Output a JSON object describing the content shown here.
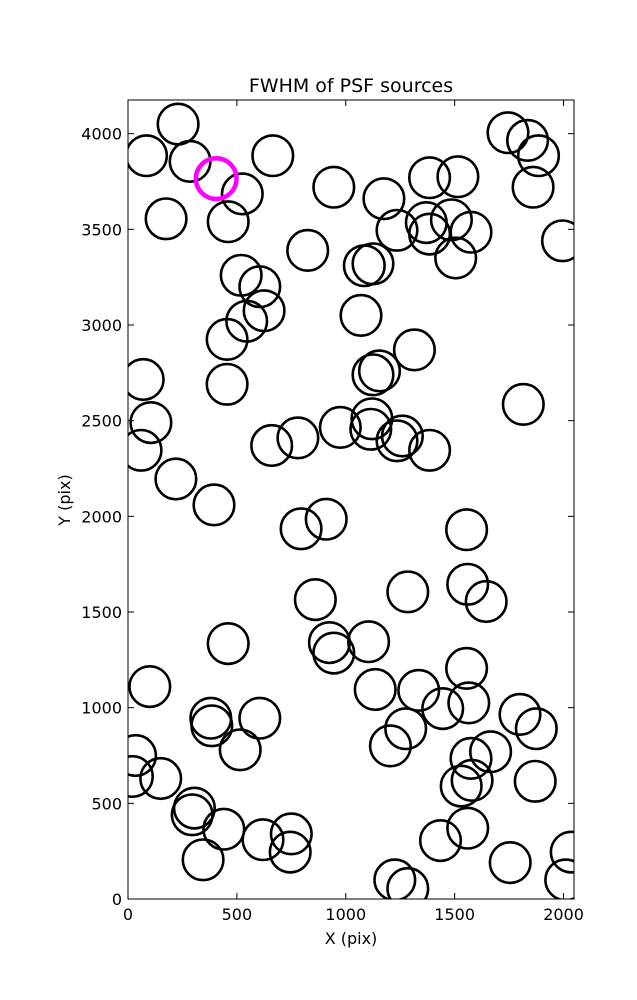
{
  "chart_data": {
    "type": "scatter",
    "title": "FWHM of PSF sources",
    "xlabel": "X (pix)",
    "ylabel": "Y (pix)",
    "xlim": [
      0,
      2048
    ],
    "ylim": [
      0,
      4176
    ],
    "xticks": [
      0,
      500,
      1000,
      1500,
      2000
    ],
    "yticks": [
      0,
      500,
      1000,
      1500,
      2000,
      2500,
      3000,
      3500,
      4000
    ],
    "grid": false,
    "marker": "open-circle",
    "marker_radius": 93,
    "colors": {
      "default": "#000000",
      "highlight": "#ff00ff"
    },
    "highlight": {
      "x": 405,
      "y": 3765
    },
    "sources": [
      {
        "x": 230,
        "y": 4050
      },
      {
        "x": 85,
        "y": 3885
      },
      {
        "x": 285,
        "y": 3855
      },
      {
        "x": 665,
        "y": 3885
      },
      {
        "x": 525,
        "y": 3685
      },
      {
        "x": 460,
        "y": 3540
      },
      {
        "x": 175,
        "y": 3555
      },
      {
        "x": 945,
        "y": 3720
      },
      {
        "x": 1175,
        "y": 3660
      },
      {
        "x": 1385,
        "y": 3770
      },
      {
        "x": 1515,
        "y": 3775
      },
      {
        "x": 1745,
        "y": 4005
      },
      {
        "x": 1835,
        "y": 3965
      },
      {
        "x": 1885,
        "y": 3885
      },
      {
        "x": 1860,
        "y": 3720
      },
      {
        "x": 1995,
        "y": 3440
      },
      {
        "x": 1235,
        "y": 3495
      },
      {
        "x": 1370,
        "y": 3535
      },
      {
        "x": 1385,
        "y": 3475
      },
      {
        "x": 1485,
        "y": 3550
      },
      {
        "x": 1575,
        "y": 3485
      },
      {
        "x": 1505,
        "y": 3350
      },
      {
        "x": 825,
        "y": 3390
      },
      {
        "x": 1085,
        "y": 3310
      },
      {
        "x": 1125,
        "y": 3320
      },
      {
        "x": 520,
        "y": 3260
      },
      {
        "x": 605,
        "y": 3200
      },
      {
        "x": 625,
        "y": 3075
      },
      {
        "x": 545,
        "y": 3020
      },
      {
        "x": 455,
        "y": 2925
      },
      {
        "x": 1070,
        "y": 3050
      },
      {
        "x": 1315,
        "y": 2870
      },
      {
        "x": 1125,
        "y": 2740
      },
      {
        "x": 1155,
        "y": 2760
      },
      {
        "x": 70,
        "y": 2715
      },
      {
        "x": 455,
        "y": 2690
      },
      {
        "x": 1815,
        "y": 2585
      },
      {
        "x": 105,
        "y": 2490
      },
      {
        "x": 60,
        "y": 2345
      },
      {
        "x": 220,
        "y": 2195
      },
      {
        "x": 395,
        "y": 2060
      },
      {
        "x": 660,
        "y": 2370
      },
      {
        "x": 780,
        "y": 2410
      },
      {
        "x": 975,
        "y": 2465
      },
      {
        "x": 1115,
        "y": 2455
      },
      {
        "x": 1120,
        "y": 2510
      },
      {
        "x": 1235,
        "y": 2395
      },
      {
        "x": 1260,
        "y": 2420
      },
      {
        "x": 1385,
        "y": 2345
      },
      {
        "x": 795,
        "y": 1935
      },
      {
        "x": 910,
        "y": 1985
      },
      {
        "x": 1555,
        "y": 1930
      },
      {
        "x": 860,
        "y": 1565
      },
      {
        "x": 1285,
        "y": 1605
      },
      {
        "x": 1560,
        "y": 1645
      },
      {
        "x": 1645,
        "y": 1555
      },
      {
        "x": 460,
        "y": 1335
      },
      {
        "x": 925,
        "y": 1340
      },
      {
        "x": 945,
        "y": 1285
      },
      {
        "x": 1105,
        "y": 1345
      },
      {
        "x": 1555,
        "y": 1205
      },
      {
        "x": 100,
        "y": 1110
      },
      {
        "x": 1135,
        "y": 1095
      },
      {
        "x": 1335,
        "y": 1090
      },
      {
        "x": 1445,
        "y": 995
      },
      {
        "x": 1565,
        "y": 1025
      },
      {
        "x": 1800,
        "y": 965
      },
      {
        "x": 1875,
        "y": 890
      },
      {
        "x": 385,
        "y": 905
      },
      {
        "x": 380,
        "y": 945
      },
      {
        "x": 605,
        "y": 945
      },
      {
        "x": 515,
        "y": 780
      },
      {
        "x": 1205,
        "y": 800
      },
      {
        "x": 1275,
        "y": 890
      },
      {
        "x": 1575,
        "y": 735
      },
      {
        "x": 1665,
        "y": 770
      },
      {
        "x": 35,
        "y": 750
      },
      {
        "x": 20,
        "y": 640
      },
      {
        "x": 150,
        "y": 630
      },
      {
        "x": 305,
        "y": 475
      },
      {
        "x": 295,
        "y": 440
      },
      {
        "x": 440,
        "y": 365
      },
      {
        "x": 345,
        "y": 205
      },
      {
        "x": 620,
        "y": 310
      },
      {
        "x": 750,
        "y": 340
      },
      {
        "x": 745,
        "y": 245
      },
      {
        "x": 1530,
        "y": 590
      },
      {
        "x": 1580,
        "y": 620
      },
      {
        "x": 1870,
        "y": 615
      },
      {
        "x": 1435,
        "y": 305
      },
      {
        "x": 1560,
        "y": 370
      },
      {
        "x": 1755,
        "y": 190
      },
      {
        "x": 1225,
        "y": 100
      },
      {
        "x": 1285,
        "y": 55
      },
      {
        "x": 2035,
        "y": 245
      },
      {
        "x": 2010,
        "y": 100
      }
    ]
  }
}
